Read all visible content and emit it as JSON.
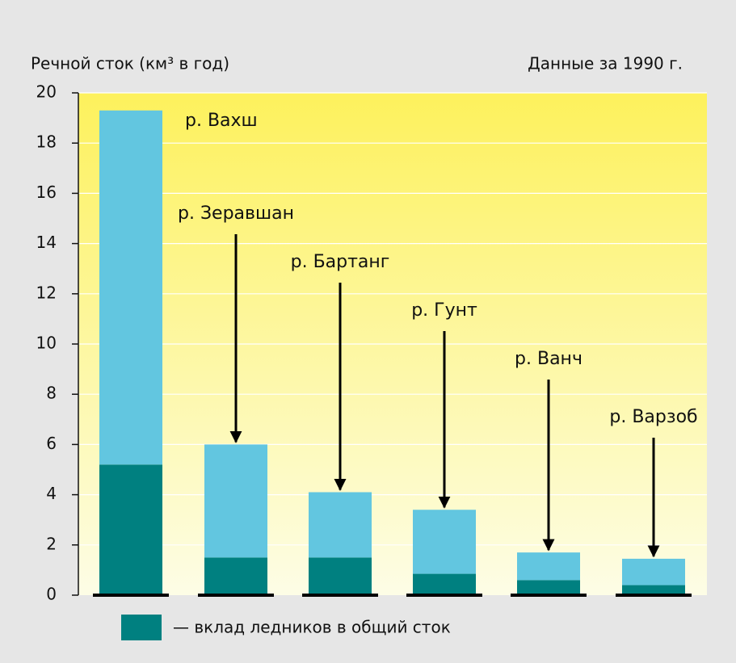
{
  "chart_data": {
    "type": "stacked-bar",
    "y_label": "Речной сток (км³ в год)",
    "subtitle": "Данные за 1990 г.",
    "categories": [
      "р. Вахш",
      "р. Зеравшан",
      "р. Бартанг",
      "р. Гунт",
      "р. Ванч",
      "р. Варзоб"
    ],
    "series": [
      {
        "name": "— вклад ледников в общий сток",
        "color": "#008080",
        "values": [
          5.2,
          1.5,
          1.5,
          0.85,
          0.6,
          0.4
        ]
      },
      {
        "color": "#62c6e0",
        "values": [
          14.1,
          4.5,
          2.6,
          2.55,
          1.1,
          1.05
        ]
      }
    ],
    "ylim": [
      0,
      20
    ],
    "yticks": [
      0,
      2,
      4,
      6,
      8,
      10,
      12,
      14,
      16,
      18,
      20
    ],
    "grid": true
  }
}
